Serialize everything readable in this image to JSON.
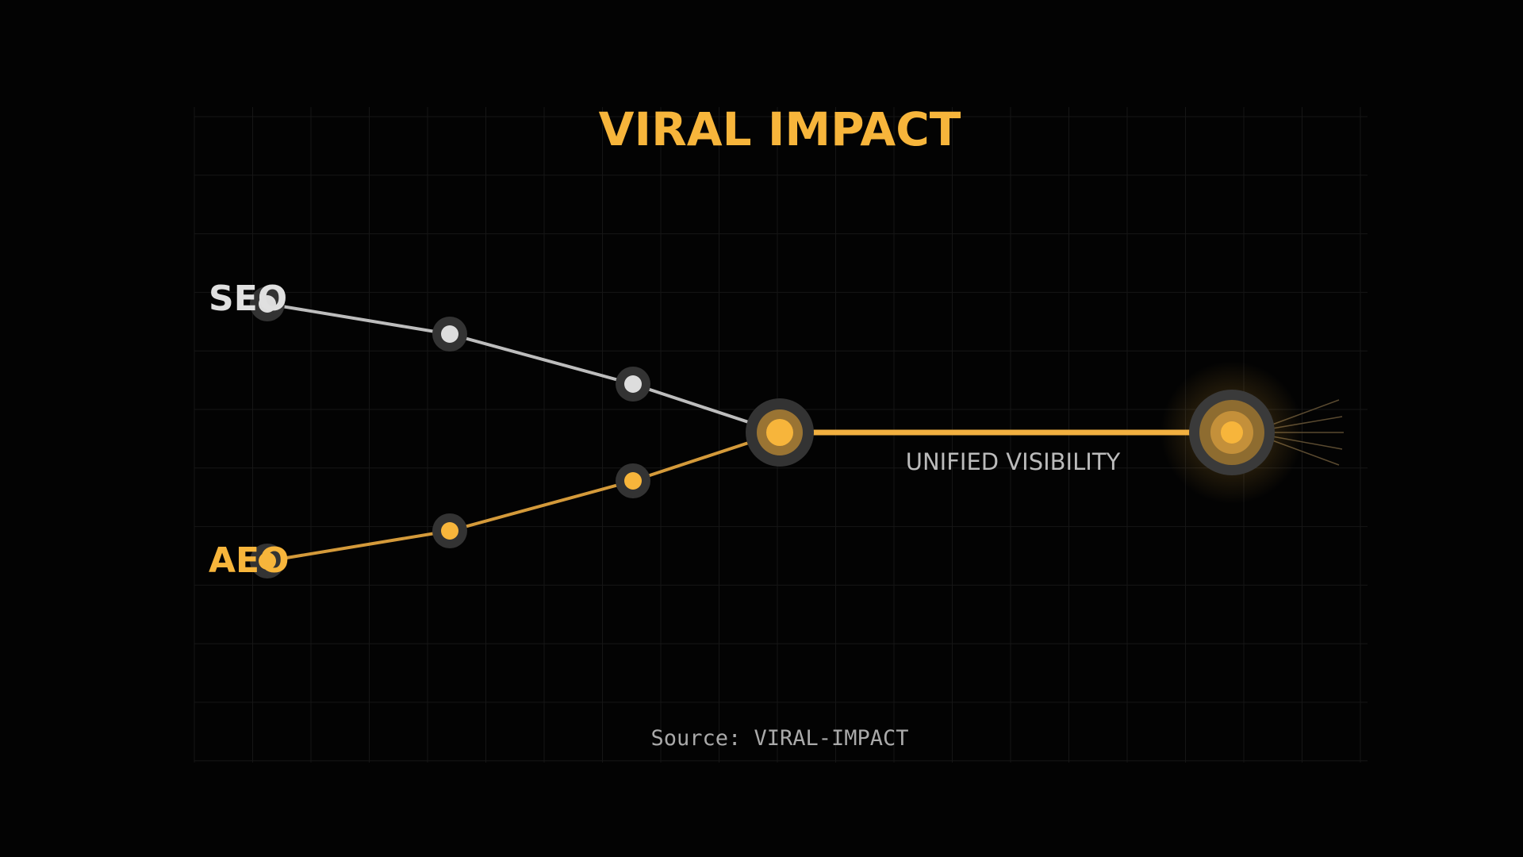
{
  "header": {
    "title": "VIRAL IMPACT"
  },
  "nodes": [
    {
      "label": "SEO"
    },
    {
      "label": "AEO"
    }
  ],
  "output": {
    "label": "UNIFIED VISIBILITY"
  },
  "footer": {
    "source": "Source: VIRAL-IMPACT"
  }
}
